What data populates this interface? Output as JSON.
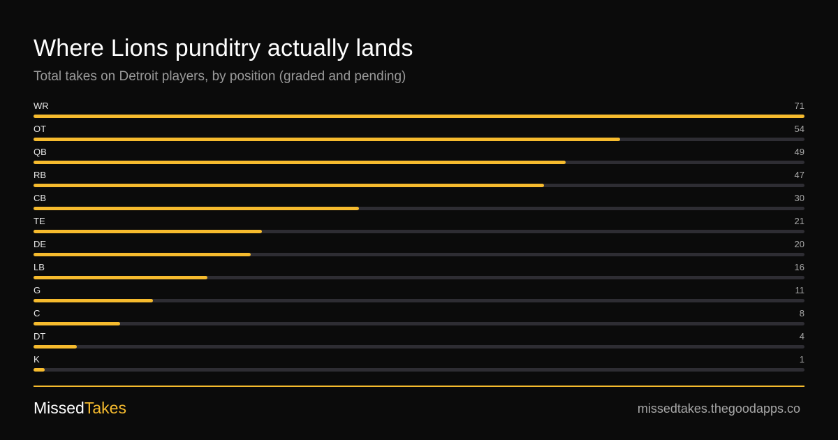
{
  "colors": {
    "background": "#0b0b0b",
    "accent": "#f6bb2e",
    "track": "#2e2d33",
    "muted_text": "#9a9a9a"
  },
  "header": {
    "title": "Where Lions punditry actually lands",
    "subtitle": "Total takes on Detroit players, by position (graded and pending)"
  },
  "chart_data": {
    "type": "bar",
    "orientation": "horizontal",
    "title": "Where Lions punditry actually lands",
    "subtitle": "Total takes on Detroit players, by position (graded and pending)",
    "categories": [
      "WR",
      "OT",
      "QB",
      "RB",
      "CB",
      "TE",
      "DE",
      "LB",
      "G",
      "C",
      "DT",
      "K"
    ],
    "values": [
      71,
      54,
      49,
      47,
      30,
      21,
      20,
      16,
      11,
      8,
      4,
      1
    ],
    "xlim": [
      0,
      71
    ],
    "grid": false,
    "legend": "none"
  },
  "footer": {
    "brand_part1": "Missed",
    "brand_part2": "Takes",
    "site": "missedtakes.thegoodapps.co"
  }
}
